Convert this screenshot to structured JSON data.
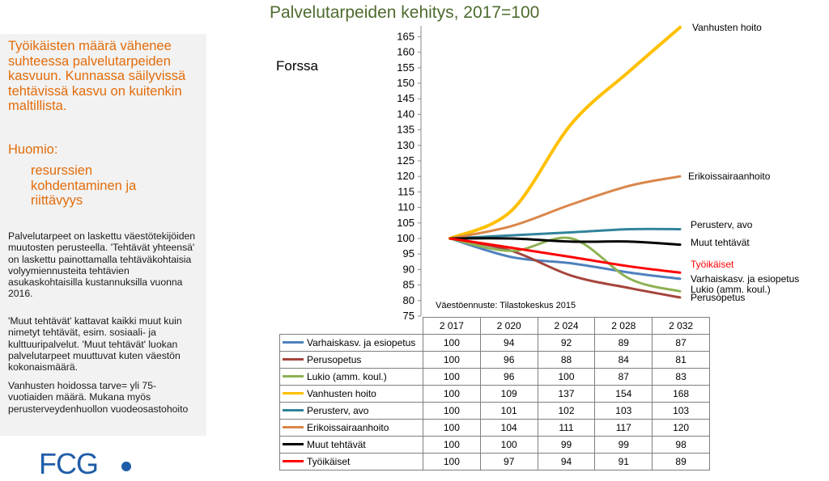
{
  "slide": {
    "title": "Palvelutarpeiden kehitys, 2017=100",
    "place": "Forssa",
    "source": "Väestöennuste: Tilastokeskus 2015",
    "lead_text": "Työikäisten määrä vähenee suhteessa palvelutarpeiden kasvuun.  Kunnassa säilyvissä tehtävissä kasvu on kuitenkin maltillista.",
    "note_heading": "Huomio:",
    "note_item": "resurssien kohdentaminen ja riittävyys",
    "paragraphs": [
      "Palvelutarpeet on laskettu väestötekijöiden muutosten perusteella. 'Tehtävät yhteensä' on laskettu painottamalla tehtäväkohtaisia volyymiennusteita tehtävien asukaskohtaisilla kustannuksilla vuonna 2016.",
      "'Muut tehtävät'  kattavat kaikki muut kuin nimetyt tehtävät, esim. sosiaali- ja kulttuuripalvelut. 'Muut tehtävät' luokan palvelutarpeet muuttuvat kuten väestön kokonaismäärä.",
      "Vanhusten hoidossa tarve= yli 75-vuotiaiden määrä.  Mukana myös perusterveydenhuollon vuodeosastohoito"
    ],
    "logo_text": "FCG"
  },
  "chart_data": {
    "type": "line",
    "title": "Palvelutarpeiden kehitys, 2017=100",
    "xlabel": "",
    "ylabel": "",
    "categories": [
      "2 017",
      "2 020",
      "2 024",
      "2 028",
      "2 032"
    ],
    "ylim": [
      75,
      168
    ],
    "yticks": [
      75,
      80,
      85,
      90,
      95,
      100,
      105,
      110,
      115,
      120,
      125,
      130,
      135,
      140,
      145,
      150,
      155,
      160,
      165
    ],
    "grid": false,
    "legend": "data table below chart",
    "series": [
      {
        "name": "Varhaiskasv. ja esiopetus",
        "end_label": "Varhaiskasv. ja esiopetus",
        "color": "#4f81bd",
        "values": [
          100,
          94,
          92,
          89,
          87
        ]
      },
      {
        "name": "Perusopetus",
        "end_label": "Perusopetus",
        "color": "#a5443c",
        "values": [
          100,
          96,
          88,
          84,
          81
        ]
      },
      {
        "name": "Lukio (amm. koul.)",
        "end_label": "Lukio (amm. koul.)",
        "color": "#8db253",
        "values": [
          100,
          96,
          100,
          87,
          83
        ]
      },
      {
        "name": "Vanhusten hoito",
        "end_label": "Vanhusten hoito",
        "color": "#ffc000",
        "values": [
          100,
          109,
          137,
          154,
          168
        ]
      },
      {
        "name": "Perusterv, avo",
        "end_label": "Perusterv, avo",
        "color": "#31849b",
        "values": [
          100,
          101,
          102,
          103,
          103
        ]
      },
      {
        "name": "Erikoissairaanhoito",
        "end_label": "Erikoissairaanhoito",
        "color": "#d9864a",
        "values": [
          100,
          104,
          111,
          117,
          120
        ]
      },
      {
        "name": "Muut tehtävät",
        "end_label": "Muut tehtävät",
        "color": "#000000",
        "values": [
          100,
          100,
          99,
          99,
          98
        ]
      },
      {
        "name": "Työikäiset",
        "end_label": "Työikäiset",
        "color": "#ff0000",
        "label_color": "#ff0000",
        "values": [
          100,
          97,
          94,
          91,
          89
        ]
      }
    ]
  },
  "colors": {
    "accent_orange": "#e36c0a",
    "title_green": "#4e6b2e",
    "logo_blue": "#1f5da8",
    "panel_bg": "#f2f2f2"
  }
}
